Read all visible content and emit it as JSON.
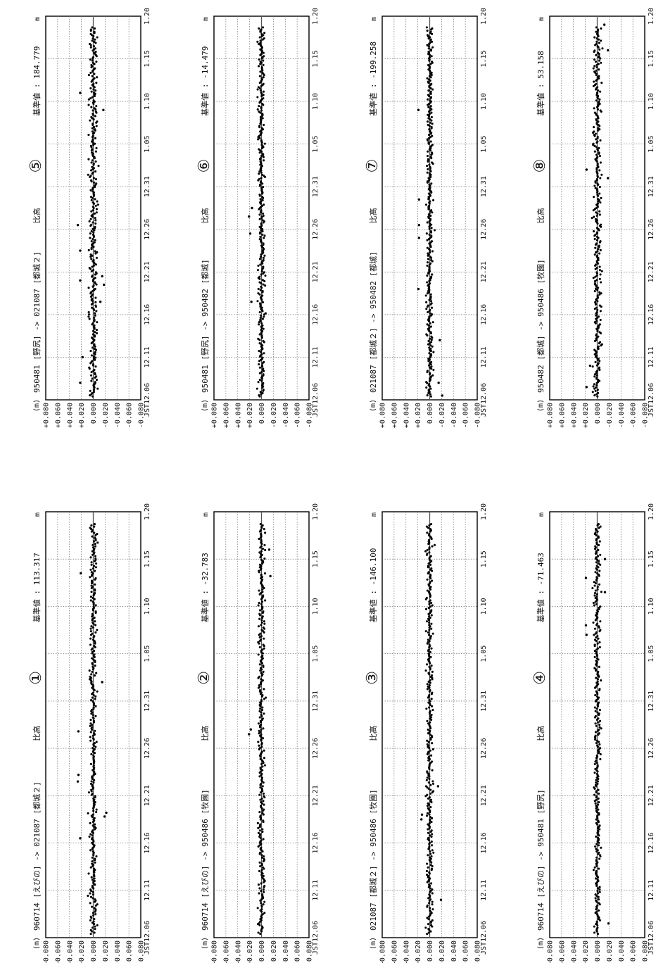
{
  "page": {
    "unit_label": "m",
    "y_unit_label": "(m)",
    "baseline_label": "基準値",
    "hitaka_label": "比高"
  },
  "axes": {
    "yticks": [
      0.08,
      0.06,
      0.04,
      0.02,
      0.0,
      -0.02,
      -0.04,
      -0.06,
      -0.08
    ],
    "ytick_labels": [
      "+0.080",
      "+0.060",
      "+0.040",
      "+0.020",
      "0.000",
      "-0.020",
      "-0.040",
      "-0.060",
      "-0.080"
    ],
    "ylim": [
      -0.08,
      0.08
    ],
    "xtick_labels": [
      "JST12.06",
      "12.11",
      "12.16",
      "12.21",
      "12.26",
      "12.31",
      "1.05",
      "1.10",
      "1.15",
      "1.20"
    ],
    "xlim": [
      0,
      45
    ]
  },
  "chart_data": [
    {
      "type": "scatter",
      "number": "①",
      "title": "960714 [えびの] -> 021087 [都城２]",
      "baseline": "113.317",
      "noise": 0.011,
      "outliers": [
        [
          10.5,
          0.022
        ],
        [
          16.5,
          0.026
        ],
        [
          21.8,
          0.025
        ],
        [
          17.2,
          0.025
        ],
        [
          12.8,
          -0.019
        ],
        [
          13.2,
          -0.022
        ],
        [
          27,
          -0.015
        ],
        [
          38.5,
          0.021
        ]
      ]
    },
    {
      "type": "scatter",
      "number": "②",
      "title": "960714 [えびの] -> 950486 [牧園]",
      "baseline": "-32.783",
      "noise": 0.01,
      "outliers": [
        [
          21.5,
          0.021
        ],
        [
          22,
          0.018
        ],
        [
          38.2,
          -0.015
        ],
        [
          41,
          -0.013
        ]
      ]
    },
    {
      "type": "scatter",
      "number": "③",
      "title": "021087 [都城２] -> 950486 [牧園]",
      "baseline": "-146.100",
      "noise": 0.011,
      "outliers": [
        [
          12.5,
          0.014
        ],
        [
          13,
          0.013
        ],
        [
          16,
          -0.014
        ],
        [
          4,
          -0.019
        ]
      ]
    },
    {
      "type": "scatter",
      "number": "④",
      "title": "960714 [えびの] -> 950481 [野尻]",
      "baseline": "-71.463",
      "noise": 0.01,
      "outliers": [
        [
          1.5,
          -0.019
        ],
        [
          32,
          0.018
        ],
        [
          33,
          0.019
        ],
        [
          36.5,
          -0.013
        ],
        [
          38,
          0.019
        ],
        [
          40,
          -0.013
        ]
      ]
    },
    {
      "type": "scatter",
      "number": "⑤",
      "title": "950481 [野尻] -> 021087 [都城２]",
      "baseline": "184.779",
      "noise": 0.013,
      "outliers": [
        [
          2,
          0.022
        ],
        [
          5,
          0.018
        ],
        [
          14,
          0.022
        ],
        [
          17.5,
          0.022
        ],
        [
          20.5,
          0.026
        ],
        [
          11.5,
          -0.012
        ],
        [
          14.5,
          -0.015
        ],
        [
          13.5,
          -0.018
        ],
        [
          34,
          -0.017
        ],
        [
          36,
          0.022
        ]
      ]
    },
    {
      "type": "scatter",
      "number": "⑥",
      "title": "950481 [野尻] -> 950482 [都城]",
      "baseline": "-14.479",
      "noise": 0.01,
      "outliers": [
        [
          11.5,
          0.017
        ],
        [
          19.5,
          0.019
        ],
        [
          21.5,
          0.021
        ],
        [
          22.5,
          0.016
        ]
      ]
    },
    {
      "type": "scatter",
      "number": "⑦",
      "title": "021087 [都城２] -> 950482 [都城]",
      "baseline": "-199.258",
      "noise": 0.01,
      "outliers": [
        [
          0.5,
          -0.021
        ],
        [
          2,
          -0.015
        ],
        [
          7,
          -0.017
        ],
        [
          13,
          0.019
        ],
        [
          19,
          0.018
        ],
        [
          20.5,
          0.018
        ],
        [
          23.5,
          0.018
        ],
        [
          34,
          0.019
        ]
      ]
    },
    {
      "type": "scatter",
      "number": "⑧",
      "title": "950482 [都城] -> 950486 [牧園]",
      "baseline": "53.158",
      "noise": 0.012,
      "outliers": [
        [
          1.5,
          0.018
        ],
        [
          4,
          0.012
        ],
        [
          26,
          -0.018
        ],
        [
          41,
          -0.018
        ],
        [
          44,
          -0.012
        ],
        [
          27,
          0.018
        ]
      ]
    }
  ]
}
